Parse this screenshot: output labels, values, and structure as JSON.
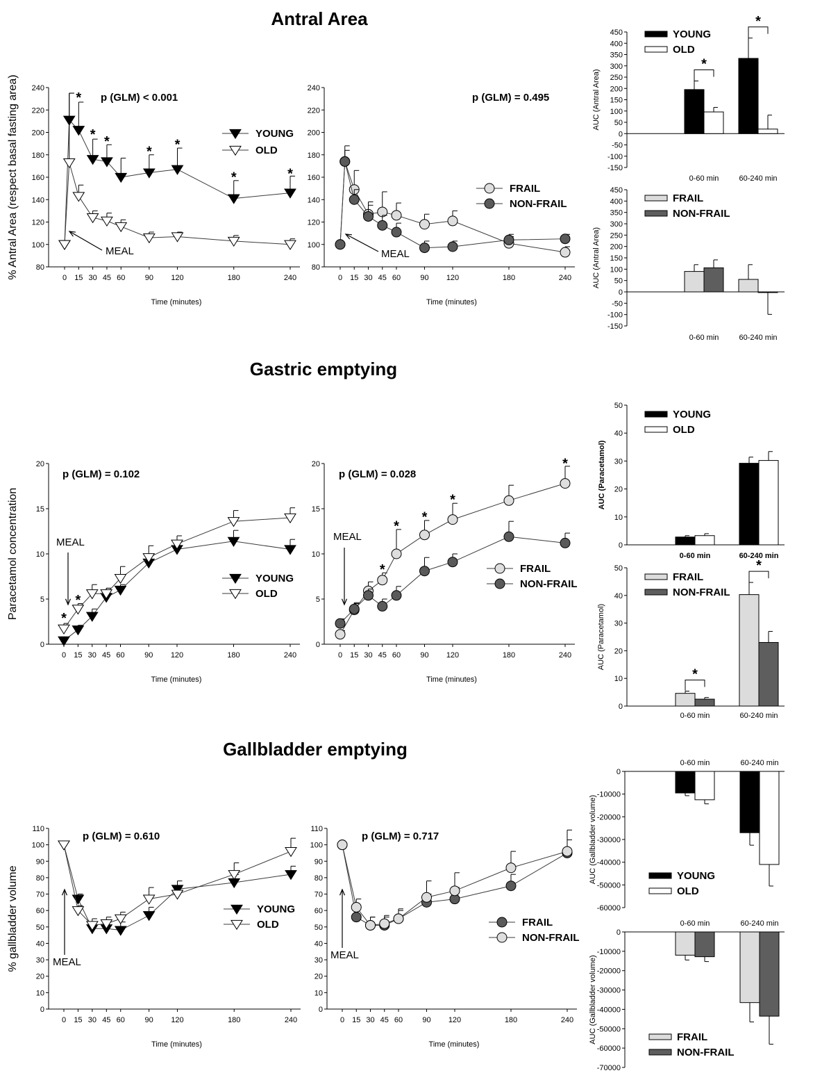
{
  "sections": [
    {
      "title": "Antral Area"
    },
    {
      "title": "Gastric emptying"
    },
    {
      "title": "Gallbladder emptying"
    }
  ],
  "chart_data": [
    {
      "id": "antral-young-old",
      "type": "line",
      "pvalue": "p (GLM) < 0.001",
      "xlabel": "Time (minutes)",
      "ylabel": "% Antral Area (respect basal fasting area)",
      "ylim": [
        80,
        240
      ],
      "yticks": [
        80,
        100,
        120,
        140,
        160,
        180,
        200,
        220,
        240
      ],
      "xticks": [
        "0",
        "15",
        "30",
        "45",
        "60",
        "90",
        "120",
        "180",
        "240"
      ],
      "meal_label": "MEAL",
      "series": [
        {
          "name": "YOUNG",
          "marker": "tri-down-filled",
          "x": [
            0,
            5,
            15,
            30,
            45,
            60,
            90,
            120,
            180,
            240
          ],
          "y": [
            100,
            211,
            202,
            176,
            174,
            160,
            164,
            167,
            141,
            146
          ],
          "err": [
            0,
            24,
            25,
            18,
            15,
            17,
            16,
            19,
            16,
            15
          ]
        },
        {
          "name": "OLD",
          "marker": "tri-down-open",
          "x": [
            0,
            5,
            15,
            30,
            45,
            60,
            90,
            120,
            180,
            240
          ],
          "y": [
            100,
            173,
            143,
            124,
            121,
            116,
            106,
            107,
            103,
            100
          ],
          "err": [
            0,
            62,
            10,
            6,
            7,
            6,
            5,
            4,
            5,
            5
          ]
        }
      ],
      "significance": [
        {
          "x": 15,
          "y": 232,
          "label": "*"
        },
        {
          "x": 30,
          "y": 199,
          "label": "*"
        },
        {
          "x": 45,
          "y": 193,
          "label": "*"
        },
        {
          "x": 90,
          "y": 184,
          "label": "*"
        },
        {
          "x": 120,
          "y": 190,
          "label": "*"
        },
        {
          "x": 180,
          "y": 161,
          "label": "*"
        },
        {
          "x": 240,
          "y": 164,
          "label": "*"
        }
      ]
    },
    {
      "id": "antral-frail",
      "type": "line",
      "pvalue": "p (GLM) = 0.495",
      "xlabel": "Time (minutes)",
      "ylim": [
        80,
        240
      ],
      "yticks": [
        80,
        100,
        120,
        140,
        160,
        180,
        200,
        220,
        240
      ],
      "xticks": [
        "0",
        "15",
        "30",
        "45",
        "60",
        "90",
        "120",
        "180",
        "240"
      ],
      "meal_label": "MEAL",
      "series": [
        {
          "name": "FRAIL",
          "marker": "circle-light",
          "x": [
            0,
            5,
            15,
            30,
            45,
            60,
            90,
            120,
            180,
            240
          ],
          "y": [
            100,
            174,
            149,
            127,
            129,
            126,
            118,
            121,
            101,
            93
          ],
          "err": [
            0,
            14,
            17,
            11,
            18,
            11,
            9,
            9,
            6,
            5
          ]
        },
        {
          "name": "NON-FRAIL",
          "marker": "circle-dark",
          "x": [
            0,
            5,
            15,
            30,
            45,
            60,
            90,
            120,
            180,
            240
          ],
          "y": [
            100,
            174,
            140,
            125,
            117,
            111,
            97,
            98,
            104,
            105
          ],
          "err": [
            0,
            10,
            9,
            10,
            9,
            8,
            6,
            5,
            5,
            4
          ]
        }
      ]
    },
    {
      "id": "antral-auc-young-old",
      "type": "bar",
      "ylabel": "AUC (Antral Area)",
      "ylim": [
        -150,
        450
      ],
      "yticks": [
        -150,
        -100,
        -50,
        0,
        50,
        100,
        150,
        200,
        250,
        300,
        350,
        400,
        450
      ],
      "categories": [
        "0-60 min",
        "60-240 min"
      ],
      "series": [
        {
          "name": "YOUNG",
          "fill": "#000000",
          "values": [
            195,
            333
          ],
          "err": [
            38,
            90
          ]
        },
        {
          "name": "OLD",
          "fill": "#ffffff",
          "values": [
            96,
            20
          ],
          "err": [
            20,
            62
          ]
        }
      ],
      "brackets": [
        {
          "category": 0,
          "label": "*"
        },
        {
          "category": 1,
          "label": "*"
        }
      ]
    },
    {
      "id": "antral-auc-frail",
      "type": "bar",
      "ylabel": "AUC (Antral Area)",
      "ylim": [
        -150,
        450
      ],
      "yticks": [
        -150,
        -100,
        -50,
        0,
        50,
        100,
        150,
        200,
        250,
        300,
        350,
        400,
        450
      ],
      "categories": [
        "0-60 min",
        "60-240 min"
      ],
      "series": [
        {
          "name": "FRAIL",
          "fill": "#dcdcdc",
          "values": [
            90,
            55
          ],
          "err": [
            30,
            65
          ]
        },
        {
          "name": "NON-FRAIL",
          "fill": "#5e5e5e",
          "values": [
            106,
            -3
          ],
          "err": [
            35,
            96
          ]
        }
      ]
    },
    {
      "id": "paracetamol-young-old",
      "type": "line",
      "pvalue": "p (GLM) = 0.102",
      "xlabel": "Time (minutes)",
      "ylabel": "Paracetamol concentration",
      "ylim": [
        0,
        20
      ],
      "yticks": [
        0,
        5,
        10,
        15,
        20
      ],
      "xticks": [
        "0",
        "15",
        "30",
        "45",
        "60",
        "90",
        "120",
        "180",
        "240"
      ],
      "meal_label": "MEAL",
      "series": [
        {
          "name": "YOUNG",
          "marker": "tri-down-filled",
          "x": [
            0,
            15,
            30,
            45,
            60,
            90,
            120,
            180,
            240
          ],
          "y": [
            0.4,
            1.6,
            3.1,
            5.2,
            6.0,
            9.0,
            10.5,
            11.4,
            10.5
          ],
          "err": [
            0.3,
            0.5,
            0.8,
            1.0,
            0.6,
            0.8,
            0.8,
            1.2,
            1.1
          ]
        },
        {
          "name": "OLD",
          "marker": "tri-down-open",
          "x": [
            0,
            15,
            30,
            45,
            60,
            90,
            120,
            180,
            240
          ],
          "y": [
            1.7,
            3.9,
            5.6,
            5.6,
            7.3,
            9.6,
            11.1,
            13.6,
            14.0
          ],
          "err": [
            0.6,
            0.6,
            1.0,
            0.6,
            1.3,
            1.3,
            0.9,
            1.2,
            1.1
          ]
        }
      ],
      "significance": [
        {
          "x": 0,
          "y": 3.0,
          "label": "*"
        },
        {
          "x": 15,
          "y": 5.0,
          "label": "*"
        }
      ]
    },
    {
      "id": "paracetamol-frail",
      "type": "line",
      "pvalue": "p (GLM) = 0.028",
      "xlabel": "Time (minutes)",
      "ylim": [
        0,
        20
      ],
      "yticks": [
        0,
        5,
        10,
        15,
        20
      ],
      "xticks": [
        "0",
        "15",
        "30",
        "45",
        "60",
        "90",
        "120",
        "180",
        "240"
      ],
      "meal_label": "MEAL",
      "series": [
        {
          "name": "FRAIL",
          "marker": "circle-light",
          "x": [
            0,
            15,
            30,
            45,
            60,
            90,
            120,
            180,
            240
          ],
          "y": [
            1.1,
            3.8,
            5.9,
            7.1,
            10.0,
            12.1,
            13.8,
            15.9,
            17.8
          ],
          "err": [
            0.4,
            0.8,
            1.0,
            0.8,
            2.7,
            1.6,
            1.8,
            1.7,
            1.9
          ]
        },
        {
          "name": "NON-FRAIL",
          "marker": "circle-dark",
          "x": [
            0,
            15,
            30,
            45,
            60,
            90,
            120,
            180,
            240
          ],
          "y": [
            2.3,
            3.9,
            5.4,
            4.2,
            5.4,
            8.1,
            9.1,
            11.9,
            11.2
          ],
          "err": [
            0.5,
            0.6,
            0.7,
            0.8,
            1.0,
            1.5,
            0.9,
            1.7,
            1.1
          ]
        }
      ],
      "significance": [
        {
          "x": 45,
          "y": 8.4,
          "label": "*"
        },
        {
          "x": 60,
          "y": 13.2,
          "label": "*"
        },
        {
          "x": 90,
          "y": 14.2,
          "label": "*"
        },
        {
          "x": 120,
          "y": 16.1,
          "label": "*"
        },
        {
          "x": 240,
          "y": 20.1,
          "label": "*"
        }
      ]
    },
    {
      "id": "paracetamol-auc-young-old",
      "type": "bar",
      "ylabel": "AUC (Paracetamol)",
      "ylim": [
        0,
        50
      ],
      "yticks": [
        0,
        10,
        20,
        30,
        40,
        50
      ],
      "categories": [
        "0-60 min",
        "60-240 min"
      ],
      "series": [
        {
          "name": "YOUNG",
          "fill": "#000000",
          "values": [
            2.8,
            29.2
          ],
          "err": [
            0.5,
            2.2
          ]
        },
        {
          "name": "OLD",
          "fill": "#ffffff",
          "values": [
            3.3,
            30.2
          ],
          "err": [
            0.7,
            3.2
          ]
        }
      ]
    },
    {
      "id": "paracetamol-auc-frail",
      "type": "bar",
      "ylabel": "AUC (Paracetamol)",
      "ylim": [
        0,
        50
      ],
      "yticks": [
        0,
        10,
        20,
        30,
        40,
        50
      ],
      "categories": [
        "0-60 min",
        "60-240 min"
      ],
      "series": [
        {
          "name": "FRAIL",
          "fill": "#dcdcdc",
          "values": [
            4.6,
            40.3
          ],
          "err": [
            0.8,
            4.4
          ]
        },
        {
          "name": "NON-FRAIL",
          "fill": "#5e5e5e",
          "values": [
            2.5,
            23.0
          ],
          "err": [
            0.6,
            4.0
          ]
        }
      ],
      "brackets": [
        {
          "category": 0,
          "label": "*"
        },
        {
          "category": 1,
          "label": "*"
        }
      ]
    },
    {
      "id": "gallbladder-young-old",
      "type": "line",
      "pvalue": "p (GLM) = 0.610",
      "xlabel": "Time (minutes)",
      "ylabel": "% gallbladder volume",
      "ylim": [
        0,
        110
      ],
      "yticks": [
        0,
        10,
        20,
        30,
        40,
        50,
        60,
        70,
        80,
        90,
        100,
        110
      ],
      "xticks": [
        "0",
        "15",
        "30",
        "45",
        "60",
        "90",
        "120",
        "180",
        "240"
      ],
      "meal_label": "MEAL",
      "series": [
        {
          "name": "YOUNG",
          "marker": "tri-down-filled",
          "x": [
            0,
            15,
            30,
            45,
            60,
            90,
            120,
            180,
            240
          ],
          "y": [
            100,
            67,
            49,
            49,
            48,
            57,
            73,
            77,
            82
          ],
          "err": [
            0,
            3,
            4,
            4,
            5,
            5,
            5,
            5,
            5
          ]
        },
        {
          "name": "OLD",
          "marker": "tri-down-open",
          "x": [
            0,
            15,
            30,
            45,
            60,
            90,
            120,
            180,
            240
          ],
          "y": [
            100,
            60,
            51,
            52,
            55,
            67,
            70,
            82,
            96
          ],
          "err": [
            0,
            3,
            4,
            4,
            4,
            7,
            4,
            7,
            8
          ]
        }
      ]
    },
    {
      "id": "gallbladder-frail",
      "type": "line",
      "pvalue": "p (GLM) = 0.717",
      "xlabel": "Time (minutes)",
      "ylim": [
        0,
        110
      ],
      "yticks": [
        0,
        10,
        20,
        30,
        40,
        50,
        60,
        70,
        80,
        90,
        100,
        110
      ],
      "xticks": [
        "0",
        "15",
        "30",
        "45",
        "60",
        "90",
        "120",
        "180",
        "240"
      ],
      "meal_label": "MEAL",
      "series": [
        {
          "name": "FRAIL",
          "marker": "circle-dark",
          "x": [
            0,
            15,
            30,
            45,
            60,
            90,
            120,
            180,
            240
          ],
          "y": [
            100,
            56,
            51,
            51,
            55,
            65,
            67,
            75,
            95
          ],
          "err": [
            0,
            7,
            5,
            5,
            5,
            5,
            7,
            7,
            8
          ]
        },
        {
          "name": "NON-FRAIL",
          "marker": "circle-light",
          "x": [
            0,
            15,
            30,
            45,
            60,
            90,
            120,
            180,
            240
          ],
          "y": [
            100,
            62,
            51,
            52,
            55,
            68,
            72,
            86,
            96
          ],
          "err": [
            0,
            5,
            5,
            5,
            6,
            10,
            11,
            10,
            13
          ]
        }
      ]
    },
    {
      "id": "gallbladder-auc-young-old",
      "type": "bar",
      "ylabel": "AUC (Gallbladder volume)",
      "ylim": [
        -60000,
        0
      ],
      "yticks": [
        -60000,
        -50000,
        -40000,
        -30000,
        -20000,
        -10000,
        0
      ],
      "categories": [
        "0-60 min",
        "60-240 min"
      ],
      "series": [
        {
          "name": "YOUNG",
          "fill": "#000000",
          "values": [
            -9500,
            -27000
          ],
          "err": [
            1200,
            5500
          ]
        },
        {
          "name": "OLD",
          "fill": "#ffffff",
          "values": [
            -12500,
            -41000
          ],
          "err": [
            1800,
            9500
          ]
        }
      ]
    },
    {
      "id": "gallbladder-auc-frail",
      "type": "bar",
      "ylabel": "AUC (Gallbladder volume)",
      "ylim": [
        -70000,
        0
      ],
      "yticks": [
        -70000,
        -60000,
        -50000,
        -40000,
        -30000,
        -20000,
        -10000,
        0
      ],
      "categories": [
        "0-60 min",
        "60-240 min"
      ],
      "series": [
        {
          "name": "FRAIL",
          "fill": "#dcdcdc",
          "values": [
            -12000,
            -36500
          ],
          "err": [
            2500,
            10000
          ]
        },
        {
          "name": "NON-FRAIL",
          "fill": "#5e5e5e",
          "values": [
            -12800,
            -43500
          ],
          "err": [
            2500,
            14500
          ]
        }
      ]
    }
  ]
}
